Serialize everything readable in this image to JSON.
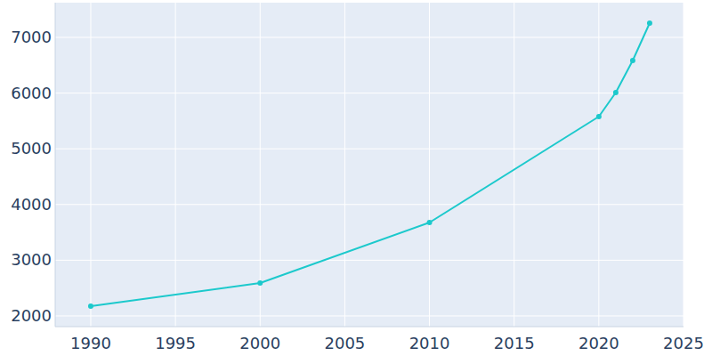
{
  "chart_data": {
    "type": "line",
    "x": [
      1990,
      2000,
      2010,
      2020,
      2021,
      2022,
      2023
    ],
    "values": [
      2176,
      2591,
      3677,
      5578,
      6010,
      6585,
      7256
    ],
    "color": "#1cc9cc",
    "marker": "circle",
    "xlim": [
      1987.9,
      2025
    ],
    "ylim": [
      1808,
      7623
    ],
    "xticks": [
      1990,
      1995,
      2000,
      2005,
      2010,
      2015,
      2020,
      2025
    ],
    "yticks": [
      2000,
      3000,
      4000,
      5000,
      6000,
      7000
    ],
    "grid": true
  }
}
